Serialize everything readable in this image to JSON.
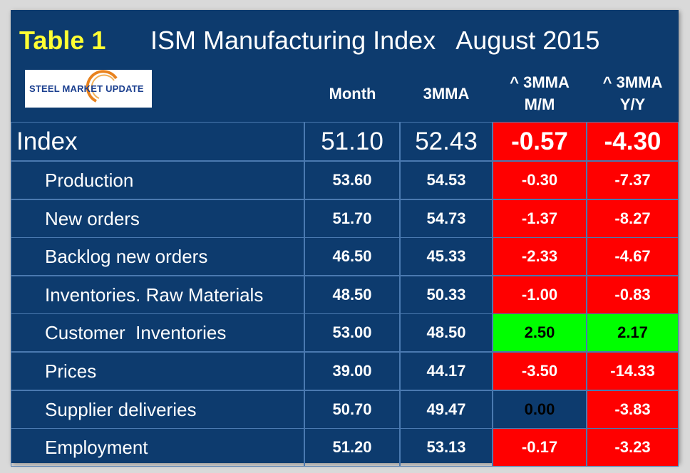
{
  "header": {
    "table_label": "Table 1",
    "title": "ISM Manufacturing Index   August 2015",
    "logo_text": "STEEL MARKET UPDATE"
  },
  "columns": {
    "month": "Month",
    "mma": "3MMA",
    "mm_line1": "^ 3MMA",
    "mm_line2": "M/M",
    "yy_line1": "^ 3MMA",
    "yy_line2": "Y/Y"
  },
  "colors": {
    "panel": "#0d3b6e",
    "title": "#ffff33",
    "negative": "#ff0000",
    "positive": "#00ff00"
  },
  "index_row": {
    "label": "Index",
    "month": "51.10",
    "mma": "52.43",
    "mm": "-0.57",
    "yy": "-4.30",
    "mm_status": "negative",
    "yy_status": "negative"
  },
  "rows": [
    {
      "label": "Production",
      "month": "53.60",
      "mma": "54.53",
      "mm": "-0.30",
      "yy": "-7.37",
      "mm_status": "negative",
      "yy_status": "negative"
    },
    {
      "label": "New orders",
      "month": "51.70",
      "mma": "54.73",
      "mm": "-1.37",
      "yy": "-8.27",
      "mm_status": "negative",
      "yy_status": "negative"
    },
    {
      "label": "Backlog new orders",
      "month": "46.50",
      "mma": "45.33",
      "mm": "-2.33",
      "yy": "-4.67",
      "mm_status": "negative",
      "yy_status": "negative"
    },
    {
      "label": "Inventories. Raw Materials",
      "month": "48.50",
      "mma": "50.33",
      "mm": "-1.00",
      "yy": "-0.83",
      "mm_status": "negative",
      "yy_status": "negative"
    },
    {
      "label": "Customer  Inventories",
      "month": "53.00",
      "mma": "48.50",
      "mm": "2.50",
      "yy": "2.17",
      "mm_status": "positive",
      "yy_status": "positive"
    },
    {
      "label": "Prices",
      "month": "39.00",
      "mma": "44.17",
      "mm": "-3.50",
      "yy": "-14.33",
      "mm_status": "negative",
      "yy_status": "negative"
    },
    {
      "label": "Supplier deliveries",
      "month": "50.70",
      "mma": "49.47",
      "mm": "0.00",
      "yy": "-3.83",
      "mm_status": "neutral",
      "yy_status": "negative"
    },
    {
      "label": "Employment",
      "month": "51.20",
      "mma": "53.13",
      "mm": "-0.17",
      "yy": "-3.23",
      "mm_status": "negative",
      "yy_status": "negative"
    }
  ]
}
